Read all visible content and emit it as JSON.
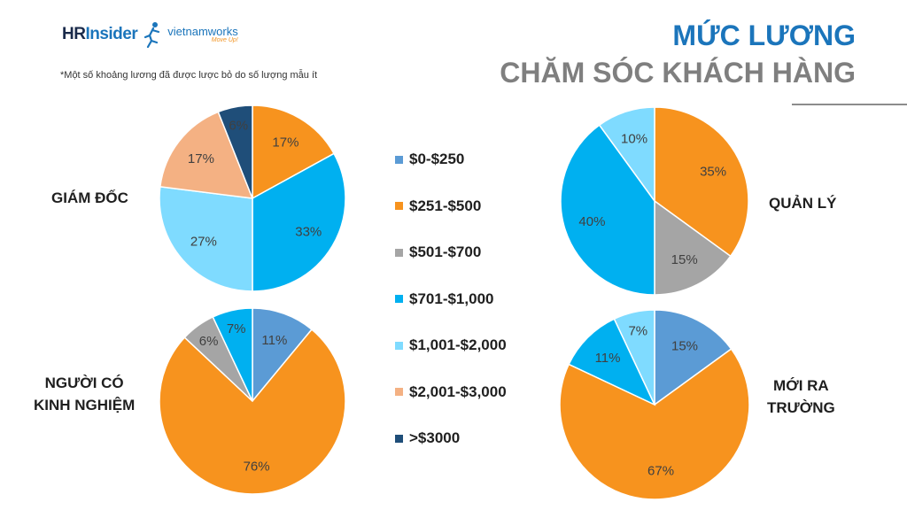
{
  "logo": {
    "hr": "HR",
    "insider": "Insider",
    "vnw": "vietnamworks",
    "vnw_tag": "Move Up!"
  },
  "note": "*Một số khoảng lương đã được lược bỏ do số lượng mẫu ít",
  "title": {
    "line1": "MỨC LƯƠNG",
    "line2": "CHĂM SÓC KHÁCH HÀNG"
  },
  "colors": {
    "$0-$250": "#5b9bd5",
    "$251-$500": "#f7931e",
    "$501-$700": "#a5a5a5",
    "$701-$1,000": "#00b0f0",
    "$1,001-$2,000": "#7fdbff",
    "$2,001-$3,000": "#f4b183",
    ">$3000": "#1f4e79"
  },
  "chart_data": {
    "type": "pie",
    "legend": [
      "$0-$250",
      "$251-$500",
      "$501-$700",
      "$701-$1,000",
      "$1,001-$2,000",
      "$2,001-$3,000",
      ">$3000"
    ],
    "charts": [
      {
        "name": "GIÁM ĐỐC",
        "slices": [
          {
            "category": "$251-$500",
            "value": 17
          },
          {
            "category": "$701-$1,000",
            "value": 33
          },
          {
            "category": "$1,001-$2,000",
            "value": 27
          },
          {
            "category": "$2,001-$3,000",
            "value": 17
          },
          {
            "category": ">$3000",
            "value": 6
          }
        ]
      },
      {
        "name": "QUẢN LÝ",
        "slices": [
          {
            "category": "$251-$500",
            "value": 35
          },
          {
            "category": "$501-$700",
            "value": 15
          },
          {
            "category": "$701-$1,000",
            "value": 40
          },
          {
            "category": "$1,001-$2,000",
            "value": 10
          }
        ]
      },
      {
        "name": "NGƯỜI CÓ KINH NGHIỆM",
        "slices": [
          {
            "category": "$0-$250",
            "value": 11
          },
          {
            "category": "$251-$500",
            "value": 76
          },
          {
            "category": "$501-$700",
            "value": 6
          },
          {
            "category": "$701-$1,000",
            "value": 7
          }
        ]
      },
      {
        "name": "MỚI RA TRƯỜNG",
        "slices": [
          {
            "category": "$0-$250",
            "value": 15
          },
          {
            "category": "$251-$500",
            "value": 67
          },
          {
            "category": "$701-$1,000",
            "value": 11
          },
          {
            "category": "$1,001-$2,000",
            "value": 7
          }
        ]
      }
    ]
  },
  "labels": {
    "giam_doc": "GIÁM ĐỐC",
    "quan_ly": "QUẢN LÝ",
    "nguoi_co_1": "NGƯỜI CÓ",
    "nguoi_co_2": "KINH NGHIỆM",
    "moi_ra_1": "MỚI RA",
    "moi_ra_2": "TRƯỜNG"
  }
}
